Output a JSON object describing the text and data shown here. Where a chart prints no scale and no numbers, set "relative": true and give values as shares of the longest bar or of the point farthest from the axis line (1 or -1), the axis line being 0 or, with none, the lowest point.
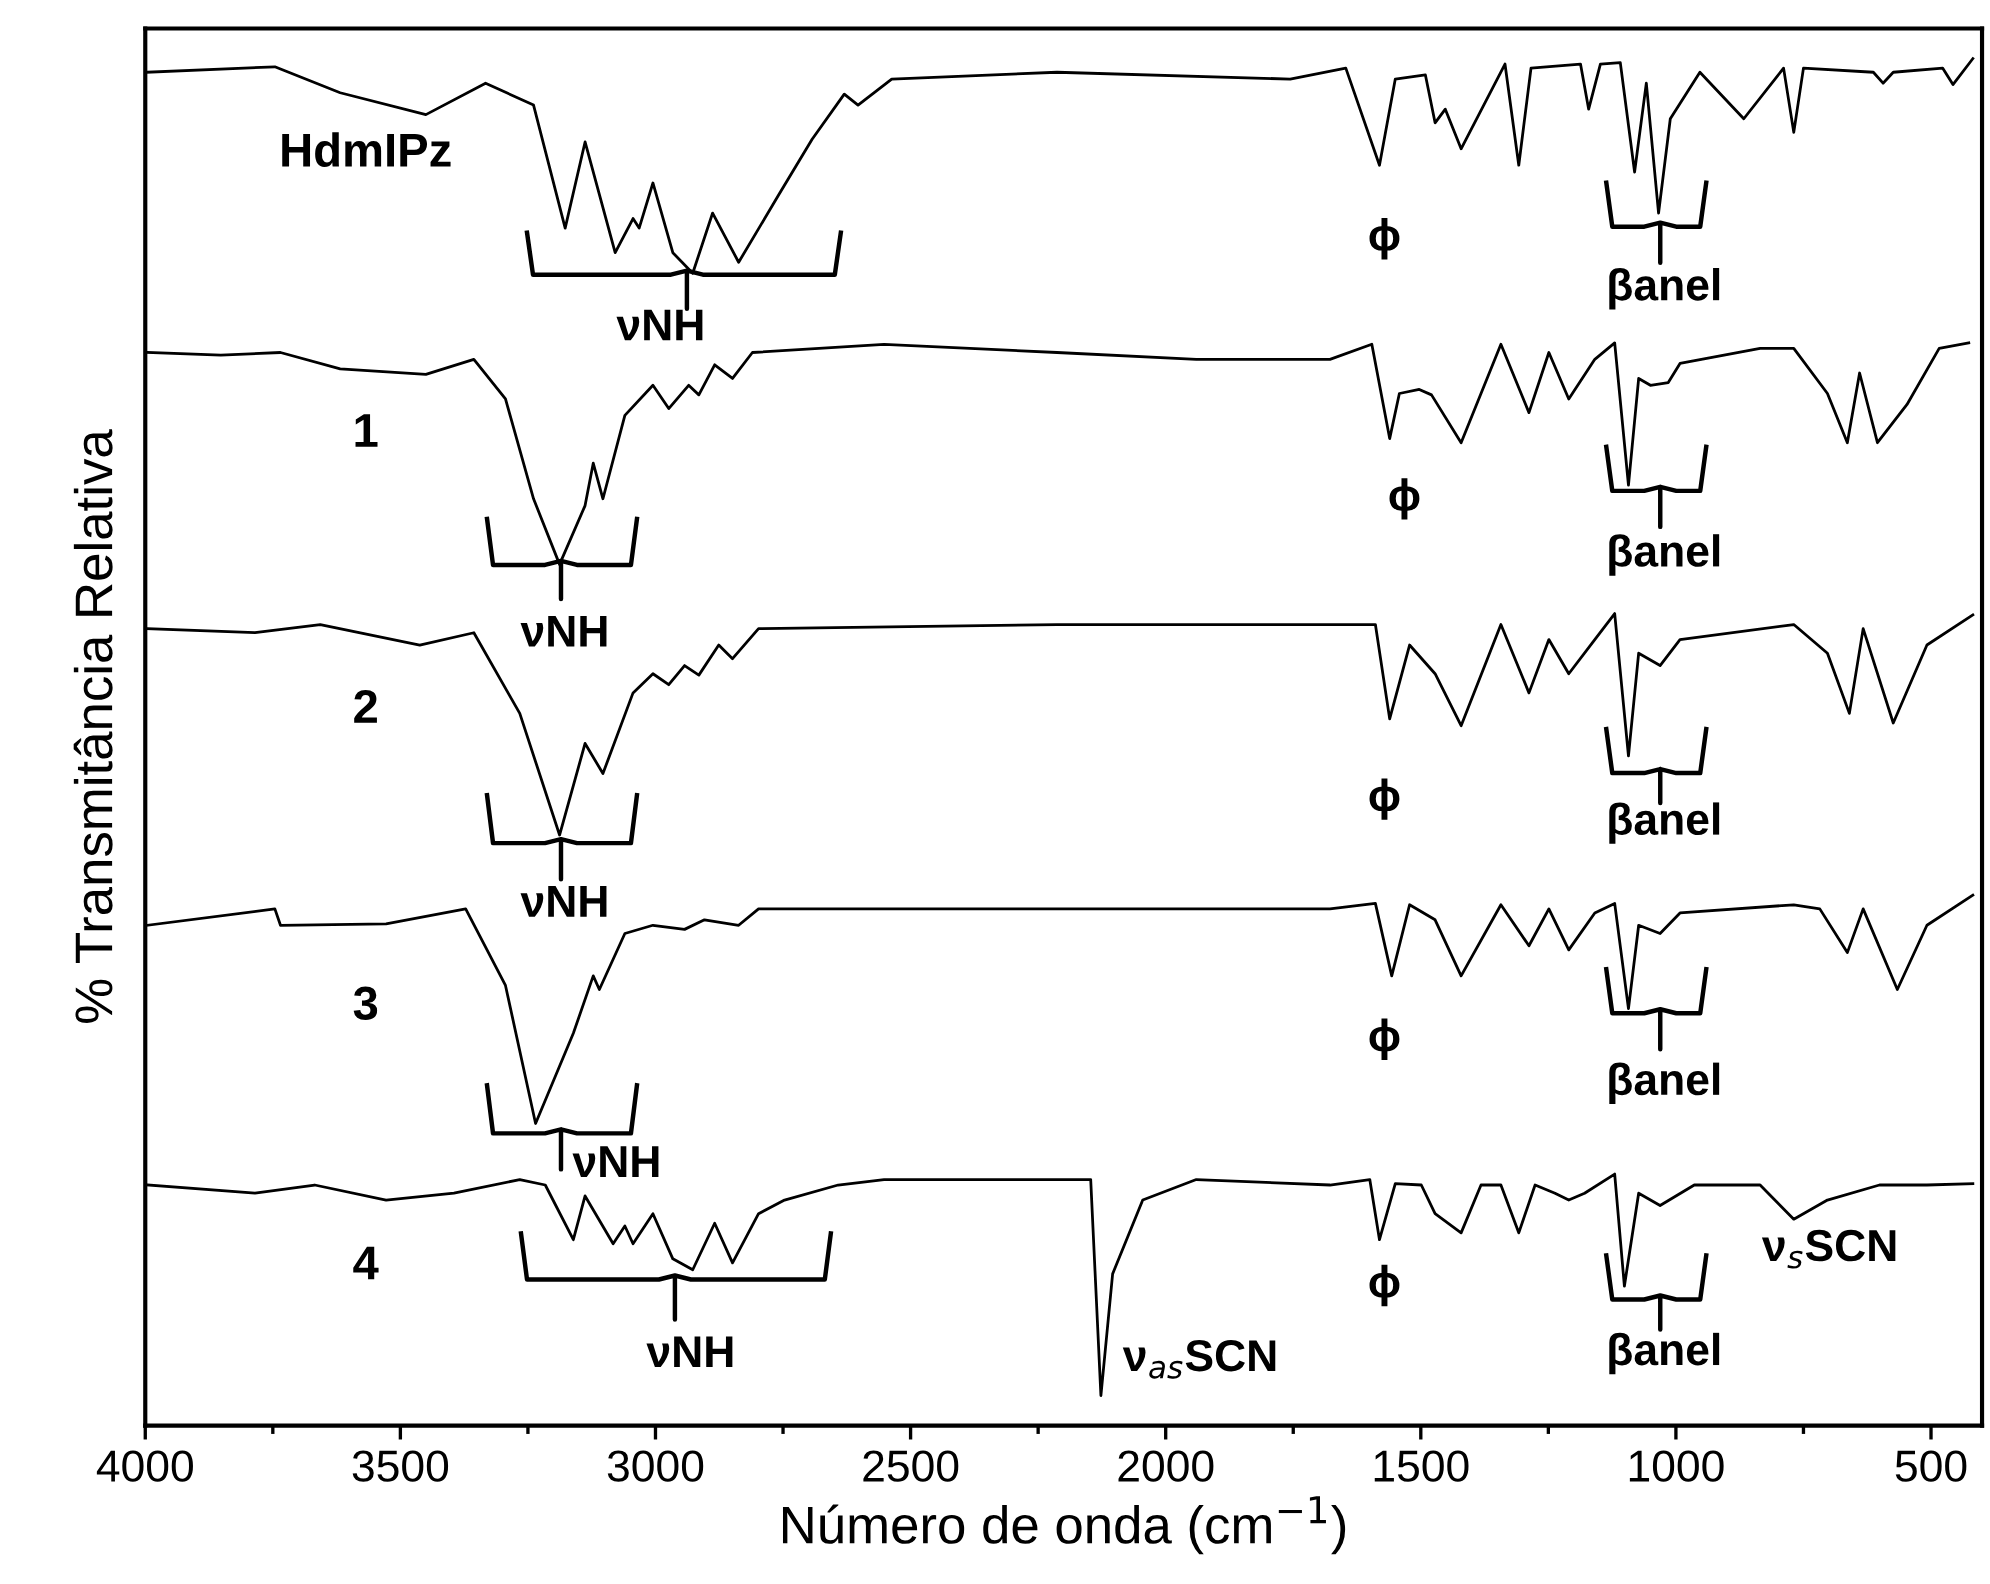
{
  "chart_data": {
    "type": "line",
    "relative": true,
    "xlabel": "Número de onda (cm$^{−1}$)",
    "ylabel": "% Transmitância Relativa",
    "xlim": [
      4000,
      400
    ],
    "xticks": [
      4000,
      3500,
      3000,
      2500,
      2000,
      1500,
      1000,
      500
    ],
    "tick_labels": "x",
    "grid": false,
    "legend": false,
    "marker": "none",
    "line_style": "solid",
    "series": [
      {
        "name": "HdmIPz",
        "color": "#000000",
        "x": [
          3996,
          3746,
          3618,
          3450,
          3333,
          3239,
          3177,
          3138,
          3079,
          3044,
          3032,
          3005,
          2966,
          2927,
          2888,
          2837,
          2759,
          2693,
          2630,
          2603,
          2537,
          2213,
          1756,
          1647,
          1581,
          1550,
          1491,
          1472,
          1452,
          1421,
          1335,
          1308,
          1284,
          1187,
          1171,
          1148,
          1109,
          1081,
          1058,
          1034,
          1011,
          953,
          867,
          789,
          769,
          750,
          613,
          594,
          574,
          477,
          457,
          418
        ],
        "values": [
          0.99,
          0.994,
          0.975,
          0.959,
          0.982,
          0.966,
          0.876,
          0.939,
          0.858,
          0.883,
          0.876,
          0.909,
          0.858,
          0.843,
          0.887,
          0.851,
          0.9,
          0.941,
          0.974,
          0.966,
          0.985,
          0.99,
          0.985,
          0.993,
          0.922,
          0.985,
          0.988,
          0.953,
          0.963,
          0.934,
          0.996,
          0.922,
          0.993,
          0.996,
          0.963,
          0.996,
          0.997,
          0.917,
          0.982,
          0.887,
          0.956,
          0.99,
          0.956,
          0.993,
          0.946,
          0.993,
          0.99,
          0.982,
          0.99,
          0.993,
          0.981,
          1.0
        ]
      },
      {
        "name": "1",
        "color": "#000000",
        "x": [
          3996,
          3852,
          3735,
          3618,
          3450,
          3356,
          3294,
          3239,
          3188,
          3138,
          3122,
          3103,
          3060,
          3005,
          2974,
          2935,
          2915,
          2884,
          2849,
          2810,
          2552,
          2213,
          1940,
          1678,
          1596,
          1561,
          1542,
          1503,
          1479,
          1421,
          1343,
          1288,
          1249,
          1210,
          1159,
          1120,
          1093,
          1073,
          1050,
          1015,
          992,
          835,
          769,
          703,
          664,
          640,
          605,
          547,
          484,
          426
        ],
        "values": [
          0.785,
          0.783,
          0.785,
          0.773,
          0.769,
          0.78,
          0.751,
          0.678,
          0.63,
          0.673,
          0.704,
          0.678,
          0.739,
          0.761,
          0.744,
          0.761,
          0.754,
          0.776,
          0.766,
          0.785,
          0.791,
          0.785,
          0.78,
          0.78,
          0.791,
          0.722,
          0.755,
          0.758,
          0.754,
          0.719,
          0.791,
          0.741,
          0.785,
          0.751,
          0.78,
          0.792,
          0.688,
          0.766,
          0.761,
          0.763,
          0.777,
          0.788,
          0.788,
          0.755,
          0.719,
          0.77,
          0.719,
          0.747,
          0.788,
          0.792
        ]
      },
      {
        "name": "2",
        "color": "#000000",
        "x": [
          3996,
          3785,
          3657,
          3462,
          3356,
          3266,
          3188,
          3138,
          3103,
          3044,
          3005,
          2974,
          2943,
          2915,
          2876,
          2849,
          2798,
          2213,
          1678,
          1589,
          1561,
          1522,
          1472,
          1421,
          1343,
          1288,
          1249,
          1210,
          1159,
          1120,
          1093,
          1073,
          1031,
          992,
          769,
          703,
          660,
          633,
          574,
          508,
          418
        ],
        "values": [
          0.583,
          0.58,
          0.586,
          0.571,
          0.58,
          0.521,
          0.432,
          0.499,
          0.477,
          0.536,
          0.55,
          0.542,
          0.556,
          0.549,
          0.571,
          0.561,
          0.583,
          0.586,
          0.586,
          0.586,
          0.517,
          0.571,
          0.55,
          0.512,
          0.586,
          0.536,
          0.575,
          0.55,
          0.575,
          0.594,
          0.49,
          0.565,
          0.556,
          0.575,
          0.586,
          0.565,
          0.521,
          0.583,
          0.514,
          0.571,
          0.593
        ]
      },
      {
        "name": "3",
        "color": "#000000",
        "x": [
          3996,
          3746,
          3735,
          3528,
          3372,
          3294,
          3235,
          3161,
          3122,
          3110,
          3060,
          3005,
          2943,
          2904,
          2837,
          2798,
          2213,
          1678,
          1589,
          1557,
          1522,
          1472,
          1421,
          1343,
          1288,
          1249,
          1210,
          1159,
          1120,
          1093,
          1073,
          1031,
          992,
          769,
          718,
          664,
          633,
          566,
          508,
          418
        ],
        "values": [
          0.366,
          0.378,
          0.366,
          0.367,
          0.378,
          0.322,
          0.221,
          0.287,
          0.329,
          0.319,
          0.36,
          0.366,
          0.363,
          0.37,
          0.366,
          0.378,
          0.378,
          0.378,
          0.382,
          0.329,
          0.381,
          0.37,
          0.329,
          0.381,
          0.351,
          0.378,
          0.348,
          0.375,
          0.382,
          0.305,
          0.366,
          0.36,
          0.375,
          0.381,
          0.378,
          0.346,
          0.378,
          0.319,
          0.366,
          0.388
        ]
      },
      {
        "name": "4",
        "color": "#000000",
        "x": [
          3996,
          3785,
          3668,
          3528,
          3395,
          3266,
          3216,
          3161,
          3138,
          3083,
          3060,
          3044,
          3005,
          2966,
          2927,
          2884,
          2849,
          2798,
          2747,
          2642,
          2552,
          2213,
          2147,
          2127,
          2104,
          2045,
          1940,
          1678,
          1600,
          1581,
          1550,
          1499,
          1472,
          1421,
          1382,
          1343,
          1308,
          1276,
          1237,
          1210,
          1179,
          1120,
          1101,
          1073,
          1031,
          964,
          835,
          769,
          703,
          601,
          508,
          418
        ],
        "values": [
          0.176,
          0.17,
          0.176,
          0.165,
          0.17,
          0.18,
          0.176,
          0.136,
          0.168,
          0.133,
          0.146,
          0.133,
          0.155,
          0.122,
          0.114,
          0.148,
          0.119,
          0.155,
          0.165,
          0.176,
          0.18,
          0.18,
          0.18,
          0.022,
          0.111,
          0.165,
          0.18,
          0.176,
          0.18,
          0.136,
          0.177,
          0.176,
          0.155,
          0.141,
          0.176,
          0.176,
          0.141,
          0.176,
          0.17,
          0.165,
          0.17,
          0.184,
          0.102,
          0.17,
          0.161,
          0.176,
          0.176,
          0.151,
          0.165,
          0.176,
          0.176,
          0.177
        ]
      }
    ],
    "annotations": [
      "νNH",
      "νNH",
      "νNH",
      "νNH",
      "νNH",
      "ϕ",
      "ϕ",
      "ϕ",
      "ϕ",
      "ϕ",
      "βanel",
      "βanel",
      "βanel",
      "βanel",
      "βanel",
      "ν$_{as}$SCN",
      "ν$_{s}$SCN"
    ]
  }
}
